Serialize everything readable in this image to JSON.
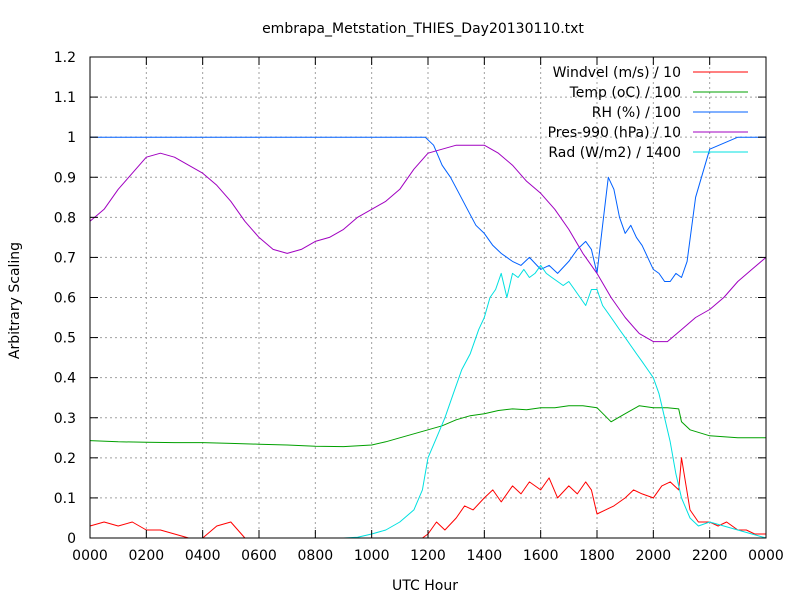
{
  "chart_data": {
    "type": "line",
    "title": "embrapa_Metstation_THIES_Day20130110.txt",
    "xlabel": "UTC Hour",
    "ylabel": "Arbitrary Scaling",
    "xlim": [
      0,
      24
    ],
    "ylim": [
      0,
      1.2
    ],
    "grid": true,
    "legend_position": "top-right",
    "x_ticks": [
      {
        "value": 0,
        "label": "0000"
      },
      {
        "value": 2,
        "label": "0200"
      },
      {
        "value": 4,
        "label": "0400"
      },
      {
        "value": 6,
        "label": "0600"
      },
      {
        "value": 8,
        "label": "0800"
      },
      {
        "value": 10,
        "label": "1000"
      },
      {
        "value": 12,
        "label": "1200"
      },
      {
        "value": 14,
        "label": "1400"
      },
      {
        "value": 16,
        "label": "1600"
      },
      {
        "value": 18,
        "label": "1800"
      },
      {
        "value": 20,
        "label": "2000"
      },
      {
        "value": 22,
        "label": "2200"
      },
      {
        "value": 24,
        "label": "0000"
      }
    ],
    "y_ticks": [
      {
        "value": 0,
        "label": "0"
      },
      {
        "value": 0.1,
        "label": "0.1"
      },
      {
        "value": 0.2,
        "label": "0.2"
      },
      {
        "value": 0.3,
        "label": "0.3"
      },
      {
        "value": 0.4,
        "label": "0.4"
      },
      {
        "value": 0.5,
        "label": "0.5"
      },
      {
        "value": 0.6,
        "label": "0.6"
      },
      {
        "value": 0.7,
        "label": "0.7"
      },
      {
        "value": 0.8,
        "label": "0.8"
      },
      {
        "value": 0.9,
        "label": "0.9"
      },
      {
        "value": 1,
        "label": "1"
      },
      {
        "value": 1.1,
        "label": "1.1"
      },
      {
        "value": 1.2,
        "label": "1.2"
      }
    ],
    "series": [
      {
        "name": "Windvel (m/s) / 10",
        "color": "#ff0000",
        "x": [
          0,
          0.5,
          1,
          1.5,
          2,
          2.5,
          3,
          3.5,
          4,
          4.5,
          5,
          5.5,
          6,
          7,
          8,
          9,
          10,
          11,
          11.8,
          12,
          12.3,
          12.6,
          13,
          13.3,
          13.6,
          14,
          14.3,
          14.6,
          15,
          15.3,
          15.6,
          16,
          16.3,
          16.6,
          17,
          17.3,
          17.6,
          17.8,
          18,
          18.3,
          18.6,
          19,
          19.3,
          19.6,
          20,
          20.3,
          20.6,
          20.9,
          21,
          21.3,
          21.6,
          22,
          22.3,
          22.6,
          23,
          23.3,
          23.6,
          24
        ],
        "y": [
          0.03,
          0.04,
          0.03,
          0.04,
          0.02,
          0.02,
          0.01,
          0.0,
          0.0,
          0.03,
          0.04,
          0.0,
          0.0,
          0.0,
          0.0,
          0.0,
          0.0,
          0.0,
          0.0,
          0.01,
          0.04,
          0.02,
          0.05,
          0.08,
          0.07,
          0.1,
          0.12,
          0.09,
          0.13,
          0.11,
          0.14,
          0.12,
          0.15,
          0.1,
          0.13,
          0.11,
          0.14,
          0.12,
          0.06,
          0.07,
          0.08,
          0.1,
          0.12,
          0.11,
          0.1,
          0.13,
          0.14,
          0.12,
          0.2,
          0.07,
          0.04,
          0.04,
          0.03,
          0.04,
          0.02,
          0.02,
          0.01,
          0.01
        ]
      },
      {
        "name": "Temp (oC) / 100",
        "color": "#00a000",
        "x": [
          0,
          1,
          2,
          3,
          4,
          5,
          6,
          7,
          8,
          9,
          10,
          10.5,
          11,
          11.5,
          12,
          12.5,
          13,
          13.5,
          14,
          14.5,
          15,
          15.5,
          16,
          16.5,
          17,
          17.5,
          18,
          18.5,
          19,
          19.5,
          20,
          20.5,
          20.9,
          21,
          21.3,
          22,
          23,
          24
        ],
        "y": [
          0.243,
          0.24,
          0.239,
          0.238,
          0.238,
          0.236,
          0.234,
          0.232,
          0.229,
          0.228,
          0.232,
          0.24,
          0.25,
          0.26,
          0.27,
          0.28,
          0.295,
          0.305,
          0.31,
          0.318,
          0.322,
          0.32,
          0.325,
          0.325,
          0.33,
          0.33,
          0.325,
          0.29,
          0.31,
          0.33,
          0.325,
          0.325,
          0.322,
          0.29,
          0.27,
          0.255,
          0.25,
          0.25
        ]
      },
      {
        "name": "RH (%) / 100",
        "color": "#0060ff",
        "x": [
          0,
          2,
          4,
          6,
          8,
          10,
          11.9,
          12.2,
          12.5,
          12.8,
          13.1,
          13.4,
          13.7,
          14,
          14.3,
          14.6,
          15,
          15.3,
          15.6,
          16,
          16.3,
          16.6,
          17,
          17.3,
          17.6,
          17.8,
          18,
          18.2,
          18.4,
          18.6,
          18.8,
          19,
          19.2,
          19.4,
          19.6,
          19.8,
          20,
          20.2,
          20.4,
          20.6,
          20.8,
          21,
          21.2,
          21.5,
          22,
          23,
          24
        ],
        "y": [
          1.0,
          1.0,
          1.0,
          1.0,
          1.0,
          1.0,
          1.0,
          0.98,
          0.93,
          0.9,
          0.86,
          0.82,
          0.78,
          0.76,
          0.73,
          0.71,
          0.69,
          0.68,
          0.7,
          0.67,
          0.68,
          0.66,
          0.69,
          0.72,
          0.74,
          0.72,
          0.66,
          0.78,
          0.9,
          0.87,
          0.8,
          0.76,
          0.78,
          0.75,
          0.73,
          0.7,
          0.67,
          0.66,
          0.64,
          0.64,
          0.66,
          0.65,
          0.69,
          0.85,
          0.97,
          1.0,
          1.0
        ]
      },
      {
        "name": "Pres-990 (hPa) / 10",
        "color": "#a000c0",
        "x": [
          0,
          0.5,
          1,
          1.5,
          2,
          2.5,
          3,
          3.5,
          4,
          4.5,
          5,
          5.5,
          6,
          6.5,
          7,
          7.5,
          8,
          8.5,
          9,
          9.5,
          10,
          10.5,
          11,
          11.5,
          12,
          12.5,
          13,
          13.5,
          14,
          14.5,
          15,
          15.5,
          16,
          16.5,
          17,
          17.5,
          18,
          18.5,
          19,
          19.5,
          20,
          20.5,
          21,
          21.5,
          22,
          22.5,
          23,
          23.5,
          24
        ],
        "y": [
          0.79,
          0.82,
          0.87,
          0.91,
          0.95,
          0.96,
          0.95,
          0.93,
          0.91,
          0.88,
          0.84,
          0.79,
          0.75,
          0.72,
          0.71,
          0.72,
          0.74,
          0.75,
          0.77,
          0.8,
          0.82,
          0.84,
          0.87,
          0.92,
          0.96,
          0.97,
          0.98,
          0.98,
          0.98,
          0.96,
          0.93,
          0.89,
          0.86,
          0.82,
          0.77,
          0.71,
          0.66,
          0.6,
          0.55,
          0.51,
          0.49,
          0.49,
          0.52,
          0.55,
          0.57,
          0.6,
          0.64,
          0.67,
          0.7
        ]
      },
      {
        "name": "Rad (W/m2) / 1400",
        "color": "#00e0e0",
        "x": [
          0,
          2,
          4,
          6,
          8,
          9,
          9.5,
          10,
          10.5,
          11,
          11.5,
          11.8,
          12,
          12.3,
          12.6,
          12.9,
          13.2,
          13.5,
          13.8,
          14,
          14.2,
          14.4,
          14.6,
          14.8,
          15,
          15.2,
          15.4,
          15.6,
          15.8,
          16,
          16.2,
          16.4,
          16.6,
          16.8,
          17,
          17.2,
          17.4,
          17.6,
          17.8,
          18,
          18.2,
          18.4,
          18.6,
          18.8,
          19,
          19.2,
          19.4,
          19.6,
          19.8,
          20,
          20.2,
          20.4,
          20.6,
          20.8,
          21,
          21.3,
          21.6,
          22,
          22.5,
          23,
          23.5,
          24
        ],
        "y": [
          0.0,
          0.0,
          0.0,
          0.0,
          0.0,
          0.0,
          0.002,
          0.01,
          0.02,
          0.04,
          0.07,
          0.12,
          0.2,
          0.25,
          0.3,
          0.36,
          0.42,
          0.46,
          0.52,
          0.55,
          0.6,
          0.62,
          0.66,
          0.6,
          0.66,
          0.65,
          0.67,
          0.65,
          0.66,
          0.68,
          0.66,
          0.65,
          0.64,
          0.63,
          0.64,
          0.62,
          0.6,
          0.58,
          0.62,
          0.62,
          0.58,
          0.56,
          0.54,
          0.52,
          0.5,
          0.48,
          0.46,
          0.44,
          0.42,
          0.4,
          0.36,
          0.3,
          0.24,
          0.16,
          0.1,
          0.05,
          0.03,
          0.04,
          0.03,
          0.02,
          0.01,
          0.0
        ]
      }
    ]
  }
}
